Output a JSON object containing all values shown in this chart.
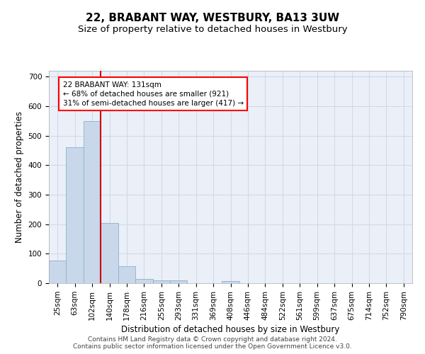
{
  "title": "22, BRABANT WAY, WESTBURY, BA13 3UW",
  "subtitle": "Size of property relative to detached houses in Westbury",
  "xlabel": "Distribution of detached houses by size in Westbury",
  "ylabel": "Number of detached properties",
  "footer_line1": "Contains HM Land Registry data © Crown copyright and database right 2024.",
  "footer_line2": "Contains public sector information licensed under the Open Government Licence v3.0.",
  "bar_labels": [
    "25sqm",
    "63sqm",
    "102sqm",
    "140sqm",
    "178sqm",
    "216sqm",
    "255sqm",
    "293sqm",
    "331sqm",
    "369sqm",
    "408sqm",
    "446sqm",
    "484sqm",
    "522sqm",
    "561sqm",
    "599sqm",
    "637sqm",
    "675sqm",
    "714sqm",
    "752sqm",
    "790sqm"
  ],
  "bar_values": [
    78,
    461,
    549,
    203,
    57,
    14,
    9,
    9,
    0,
    0,
    8,
    0,
    0,
    0,
    0,
    0,
    0,
    0,
    0,
    0,
    0
  ],
  "bar_color": "#c8d8ea",
  "bar_edgecolor": "#8bb0cc",
  "vline_color": "#cc0000",
  "annotation_text": "22 BRABANT WAY: 131sqm\n← 68% of detached houses are smaller (921)\n31% of semi-detached houses are larger (417) →",
  "ylim": [
    0,
    720
  ],
  "yticks": [
    0,
    100,
    200,
    300,
    400,
    500,
    600,
    700
  ],
  "grid_color": "#d0d8e8",
  "background_color": "#eaeff8",
  "title_fontsize": 11,
  "subtitle_fontsize": 9.5,
  "axis_label_fontsize": 8.5,
  "tick_fontsize": 7.5,
  "footer_fontsize": 6.5,
  "ann_fontsize": 7.5
}
